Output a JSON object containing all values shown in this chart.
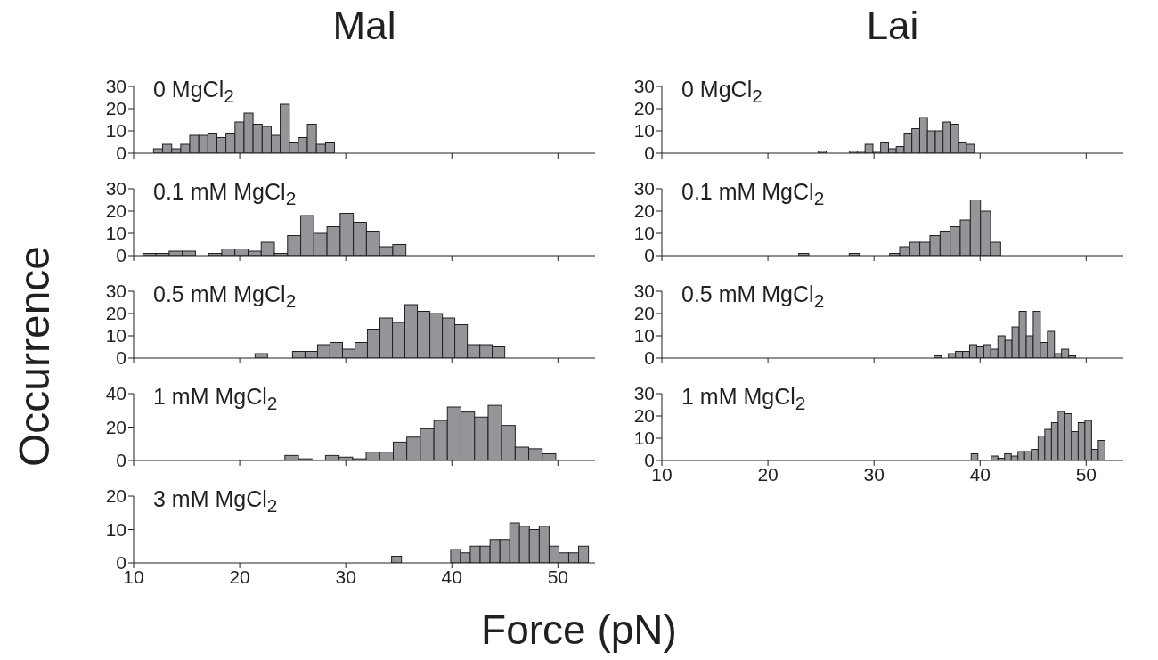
{
  "chart_data": [
    {
      "type": "histogram",
      "annotations": [
        "Mal"
      ],
      "title": "0 MgCl$_{2}$",
      "color": "#939598",
      "bins": [
        11.88,
        12.73,
        13.59,
        14.44,
        15.29,
        16.15,
        17.0,
        17.85,
        18.7,
        19.56,
        20.41,
        21.26,
        22.12,
        22.97,
        23.82,
        24.68,
        25.53,
        26.38,
        27.23,
        28.09,
        28.94
      ],
      "values": [
        2,
        4,
        2,
        4,
        8,
        8,
        9,
        7,
        9,
        14,
        18,
        13,
        12,
        8,
        22,
        5,
        7,
        13,
        4,
        5
      ],
      "xlim": [
        10,
        53.5
      ],
      "xticks": [
        10,
        20,
        30,
        40,
        50
      ],
      "ylim": [
        0,
        30
      ],
      "yticks": [
        0,
        10,
        20,
        30
      ],
      "tick_labels": "y"
    },
    {
      "type": "histogram",
      "annotations": [
        "Lai"
      ],
      "title": "0 MgCl$_{2}$",
      "color": "#939598",
      "bins": [
        24.75,
        25.49,
        26.22,
        26.96,
        27.69,
        28.43,
        29.16,
        29.9,
        30.63,
        31.37,
        32.1,
        32.84,
        33.57,
        34.31,
        35.04,
        35.78,
        36.51,
        37.25,
        37.98,
        38.72,
        39.45
      ],
      "values": [
        1,
        0,
        0,
        0,
        1,
        1,
        4,
        1,
        5,
        2,
        3,
        9,
        11,
        16,
        10,
        10,
        14,
        13,
        5,
        4
      ],
      "xlim": [
        10,
        53.5
      ],
      "xticks": [
        10,
        20,
        30,
        40,
        50
      ],
      "ylim": [
        0,
        30
      ],
      "yticks": [
        0,
        10,
        20,
        30
      ],
      "tick_labels": "y"
    },
    {
      "type": "histogram",
      "title": "0.1 mM MgCl$_{2}$",
      "color": "#939598",
      "bins": [
        10.87,
        12.11,
        13.35,
        14.59,
        15.83,
        17.07,
        18.31,
        19.55,
        20.79,
        22.03,
        23.27,
        24.51,
        25.75,
        26.99,
        28.23,
        29.47,
        30.71,
        31.95,
        33.19,
        34.43,
        35.67
      ],
      "values": [
        1,
        1,
        2,
        2,
        0,
        1,
        3,
        3,
        2,
        6,
        1,
        9,
        18,
        10,
        13,
        19,
        15,
        11,
        4,
        5
      ],
      "xlim": [
        10,
        53.5
      ],
      "xticks": [
        10,
        20,
        30,
        40,
        50
      ],
      "ylim": [
        0,
        30
      ],
      "yticks": [
        0,
        10,
        20,
        30
      ],
      "tick_labels": "y"
    },
    {
      "type": "histogram",
      "title": "0.1 mM MgCl$_{2}$",
      "color": "#939598",
      "bins": [
        22.9,
        23.85,
        24.8,
        25.76,
        26.71,
        27.66,
        28.61,
        29.56,
        30.52,
        31.47,
        32.42,
        33.37,
        34.32,
        35.28,
        36.23,
        37.18,
        38.13,
        39.08,
        40.04,
        40.99,
        41.94
      ],
      "values": [
        1,
        0,
        0,
        0,
        0,
        1,
        0,
        0,
        0,
        1,
        4,
        6,
        6,
        9,
        11,
        13,
        16,
        25,
        20,
        6
      ],
      "xlim": [
        10,
        53.5
      ],
      "xticks": [
        10,
        20,
        30,
        40,
        50
      ],
      "ylim": [
        0,
        30
      ],
      "yticks": [
        0,
        10,
        20,
        30
      ],
      "tick_labels": "y"
    },
    {
      "type": "histogram",
      "ylabel": "Occurrence",
      "title": "0.5 mM MgCl$_{2}$",
      "color": "#939598",
      "bins": [
        21.45,
        22.63,
        23.8,
        24.98,
        26.16,
        27.34,
        28.51,
        29.69,
        30.87,
        32.04,
        33.22,
        34.4,
        35.57,
        36.75,
        37.93,
        39.11,
        40.28,
        41.46,
        42.64,
        43.81,
        44.99
      ],
      "values": [
        2,
        0,
        0,
        3,
        3,
        6,
        7,
        4,
        7,
        13,
        18,
        16,
        24,
        21,
        20,
        18,
        15,
        6,
        6,
        5
      ],
      "xlim": [
        10,
        53.5
      ],
      "xticks": [
        10,
        20,
        30,
        40,
        50
      ],
      "ylim": [
        0,
        30
      ],
      "yticks": [
        0,
        10,
        20,
        30
      ],
      "tick_labels": "y"
    },
    {
      "type": "histogram",
      "title": "0.5 mM MgCl$_{2}$",
      "color": "#939598",
      "bins": [
        35.68,
        36.35,
        37.01,
        37.68,
        38.35,
        39.01,
        39.68,
        40.35,
        41.01,
        41.68,
        42.35,
        43.01,
        43.68,
        44.35,
        45.01,
        45.68,
        46.35,
        47.01,
        47.68,
        48.35,
        49.01
      ],
      "values": [
        1,
        0,
        2,
        3,
        3,
        6,
        5,
        6,
        4,
        10,
        8,
        14,
        21,
        10,
        21,
        7,
        12,
        2,
        4,
        1
      ],
      "xlim": [
        10,
        53.5
      ],
      "xticks": [
        10,
        20,
        30,
        40,
        50
      ],
      "ylim": [
        0,
        30
      ],
      "yticks": [
        0,
        10,
        20,
        30
      ],
      "tick_labels": "y"
    },
    {
      "type": "histogram",
      "title": "1 mM MgCl$_{2}$",
      "color": "#939598",
      "bins": [
        24.26,
        25.54,
        26.81,
        28.09,
        29.37,
        30.65,
        31.92,
        33.2,
        34.48,
        35.75,
        37.03,
        38.31,
        39.58,
        40.86,
        42.14,
        43.42,
        44.69,
        45.97,
        47.25,
        48.52,
        49.8
      ],
      "values": [
        3,
        1,
        0,
        3,
        2,
        1,
        5,
        5,
        11,
        14,
        19,
        24,
        32,
        29,
        26,
        33,
        21,
        8,
        7,
        4
      ],
      "xlim": [
        10,
        53.5
      ],
      "xticks": [
        10,
        20,
        30,
        40,
        50
      ],
      "ylim": [
        0,
        40
      ],
      "yticks": [
        0,
        20,
        40
      ],
      "tick_labels": "y"
    },
    {
      "type": "histogram",
      "title": "1 mM MgCl$_{2}$",
      "color": "#939598",
      "bins": [
        39.16,
        39.79,
        40.42,
        41.05,
        41.68,
        42.31,
        42.94,
        43.57,
        44.2,
        44.83,
        45.47,
        46.1,
        46.73,
        47.36,
        47.99,
        48.62,
        49.25,
        49.88,
        50.51,
        51.14,
        51.77
      ],
      "values": [
        3,
        0,
        0,
        2,
        1,
        3,
        2,
        4,
        4,
        5,
        11,
        14,
        17,
        22,
        21,
        13,
        17,
        18,
        5,
        9
      ],
      "xlim": [
        10,
        53.5
      ],
      "xticks": [
        10,
        20,
        30,
        40,
        50
      ],
      "ylim": [
        0,
        30
      ],
      "yticks": [
        0,
        10,
        20,
        30
      ]
    },
    {
      "type": "histogram",
      "xlabel": "Force (pN)",
      "title": "3 mM MgCl$_{2}$",
      "color": "#939598",
      "bins": [
        34.32,
        35.25,
        36.18,
        37.1,
        38.03,
        38.96,
        39.89,
        40.82,
        41.74,
        42.67,
        43.6,
        44.53,
        45.46,
        46.38,
        47.31,
        48.24,
        49.17,
        50.1,
        51.02,
        51.95,
        52.88
      ],
      "values": [
        2,
        0,
        0,
        0,
        0,
        0,
        4,
        3,
        5,
        5,
        7,
        7,
        12,
        11,
        10,
        11,
        5,
        3,
        3,
        5
      ],
      "xlim": [
        10,
        53.5
      ],
      "xticks": [
        10,
        20,
        30,
        40,
        50
      ],
      "ylim": [
        0,
        20
      ],
      "yticks": [
        0,
        10,
        20
      ]
    }
  ]
}
